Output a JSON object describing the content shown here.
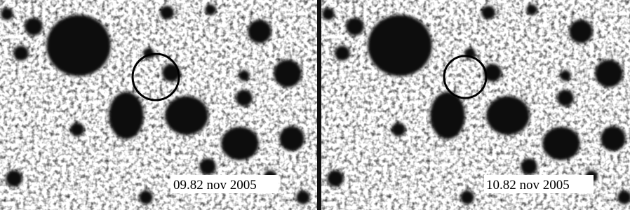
{
  "panels": [
    {
      "label": "09.82 nov 2005"
    },
    {
      "label": "10.82 nov 2005"
    }
  ]
}
